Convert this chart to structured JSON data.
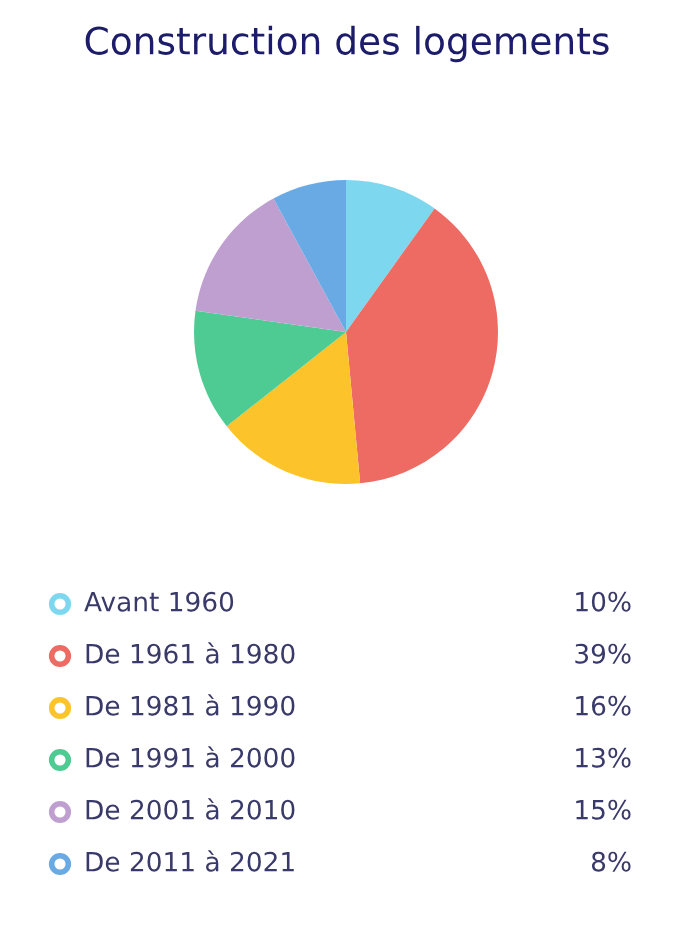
{
  "chart_data": {
    "type": "pie",
    "title": "Construction des logements",
    "categories": [
      "Avant 1960",
      "De 1961 à 1980",
      "De 1981 à 1990",
      "De 1991 à 2000",
      "De 2001 à 2010",
      "De 2011 à 2021"
    ],
    "values": [
      10,
      39,
      16,
      13,
      15,
      8
    ],
    "value_labels": [
      "10%",
      "39%",
      "16%",
      "13%",
      "15%",
      "8%"
    ],
    "colors": [
      "#7dd8ef",
      "#ee6b63",
      "#fcc42a",
      "#4ecb93",
      "#bf9fd0",
      "#6aaae4"
    ],
    "legend": "bottom"
  }
}
